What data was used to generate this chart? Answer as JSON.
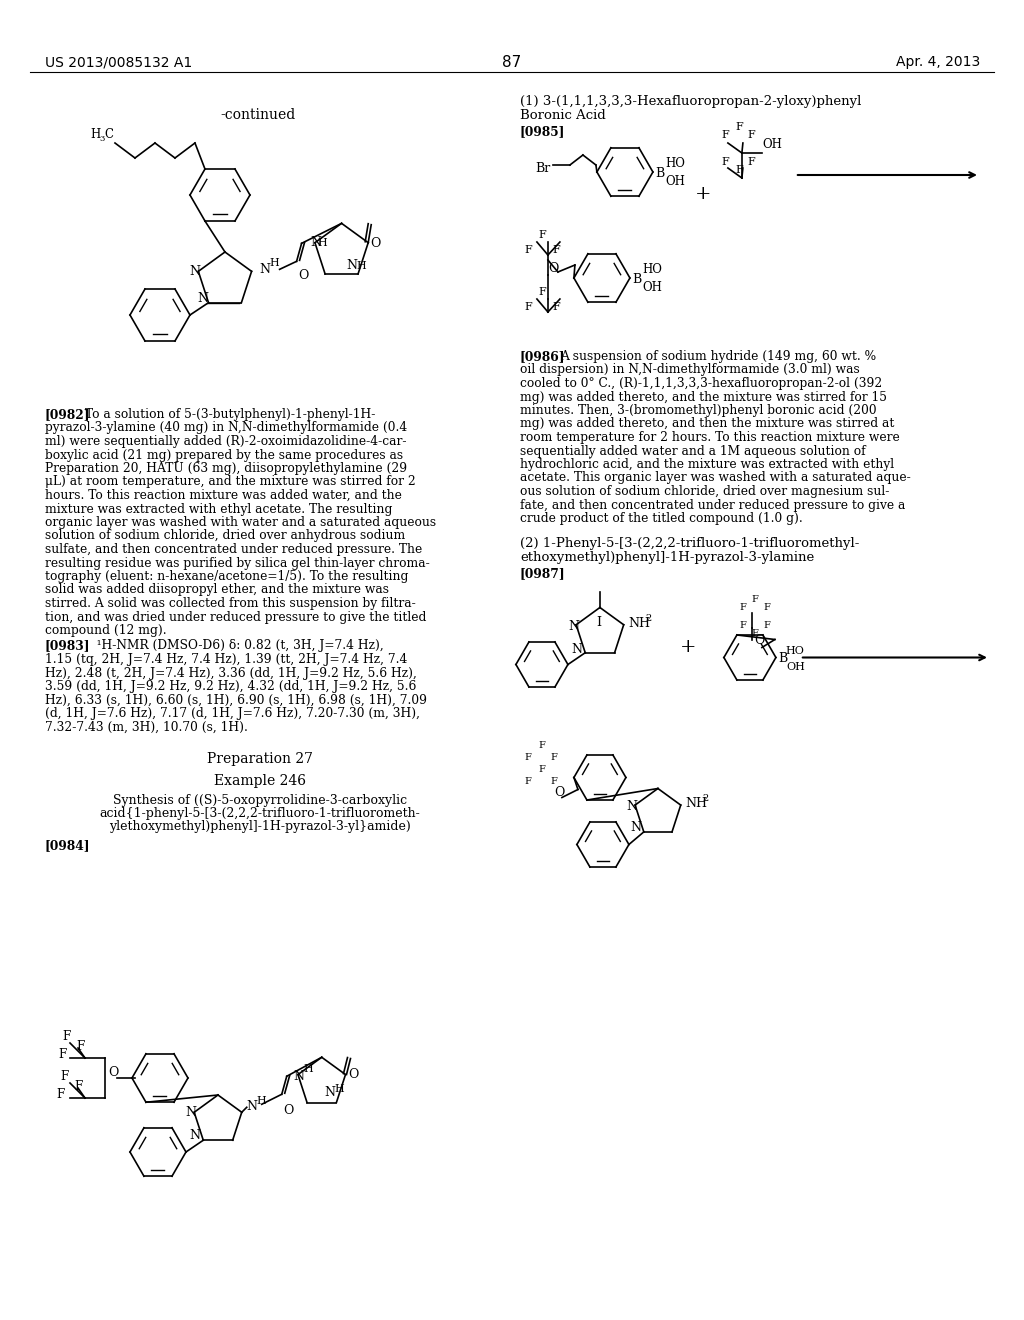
{
  "page_header_left": "US 2013/0085132 A1",
  "page_header_right": "Apr. 4, 2013",
  "page_number": "87",
  "background_color": "#ffffff",
  "text_color": "#000000",
  "font_size_body": 9.5,
  "font_size_header": 10,
  "font_size_title": 11
}
